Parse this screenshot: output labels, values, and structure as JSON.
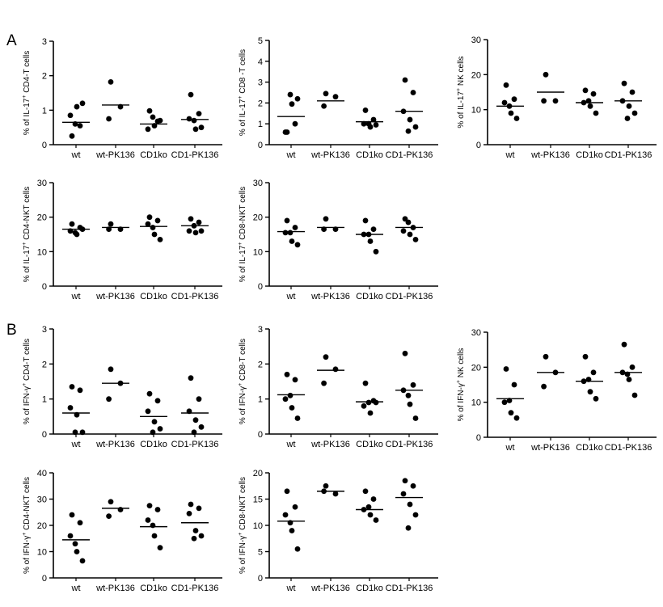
{
  "figure": {
    "panel_labels": [
      "A",
      "B"
    ],
    "background": "#ffffff",
    "ink": "#000000"
  },
  "chart_data": [
    {
      "type": "scatter",
      "ylabel_parts": [
        "% of IL-17",
        "+",
        " CD4-T cells"
      ],
      "categories": [
        "wt",
        "wt-PK136",
        "CD1ko",
        "CD1-PK136"
      ],
      "ylim": [
        0,
        3
      ],
      "yticks": [
        0,
        1,
        2,
        3
      ],
      "points": [
        [
          0.25,
          0.55,
          0.85,
          1.1,
          1.2,
          0.6
        ],
        [
          1.82,
          1.1,
          0.75
        ],
        [
          0.98,
          0.68,
          0.45,
          0.55,
          0.7,
          0.8
        ],
        [
          1.45,
          0.9,
          0.75,
          0.45,
          0.5,
          0.7
        ]
      ],
      "means": [
        0.65,
        1.15,
        0.6,
        0.73
      ]
    },
    {
      "type": "scatter",
      "ylabel_parts": [
        "% of IL-17",
        "+",
        " CD8 -T cells"
      ],
      "categories": [
        "wt",
        "wt-PK136",
        "CD1ko",
        "CD1-PK136"
      ],
      "ylim": [
        0,
        5
      ],
      "yticks": [
        0,
        1,
        2,
        3,
        4,
        5
      ],
      "points": [
        [
          0.6,
          1.0,
          0.6,
          1.95,
          2.2,
          2.4
        ],
        [
          2.45,
          2.3,
          1.85
        ],
        [
          1.65,
          1.2,
          1.0,
          0.85,
          0.95,
          1.0
        ],
        [
          3.1,
          2.5,
          1.6,
          1.2,
          0.85,
          0.65
        ]
      ],
      "means": [
        1.35,
        2.1,
        1.1,
        1.6
      ]
    },
    {
      "type": "scatter",
      "ylabel_parts": [
        "% of IL-17",
        "+",
        " NK cells"
      ],
      "categories": [
        "wt",
        "wt-PK136",
        "CD1ko",
        "CD1-PK136"
      ],
      "ylim": [
        0,
        30
      ],
      "yticks": [
        0,
        10,
        20,
        30
      ],
      "points": [
        [
          17,
          13,
          12,
          9,
          7.5,
          11
        ],
        [
          20,
          12.5,
          12.5
        ],
        [
          15.5,
          14.5,
          12,
          11,
          9,
          12.5
        ],
        [
          17.5,
          15,
          12.5,
          11,
          9,
          7.5
        ]
      ],
      "means": [
        11,
        15,
        12,
        12.5
      ]
    },
    {
      "type": "scatter",
      "ylabel_parts": [
        "% of IL-17",
        "+",
        " CD4-NKT cells"
      ],
      "categories": [
        "wt",
        "wt-PK136",
        "CD1ko",
        "CD1-PK136"
      ],
      "ylim": [
        0,
        30
      ],
      "yticks": [
        0,
        10,
        20,
        30
      ],
      "points": [
        [
          18,
          17,
          16,
          15,
          16.5,
          15.5
        ],
        [
          18,
          16.5,
          16.5
        ],
        [
          20,
          19,
          18,
          15,
          13.5,
          17
        ],
        [
          19.5,
          18.5,
          16,
          15.5,
          16,
          17.5
        ]
      ],
      "means": [
        16.5,
        17,
        17.3,
        17.5
      ]
    },
    {
      "type": "scatter",
      "ylabel_parts": [
        "% of IL-17",
        "+",
        " CD8-NKT cells"
      ],
      "categories": [
        "wt",
        "wt-PK136",
        "CD1ko",
        "CD1-PK136"
      ],
      "ylim": [
        0,
        30
      ],
      "yticks": [
        0,
        10,
        20,
        30
      ],
      "points": [
        [
          19,
          17,
          15.5,
          13,
          12,
          15.5
        ],
        [
          19.5,
          16.5,
          16.5
        ],
        [
          19,
          16.5,
          15,
          13,
          10,
          15
        ],
        [
          19.5,
          17,
          16,
          15,
          13.5,
          18.5
        ]
      ],
      "means": [
        15.8,
        17,
        15,
        17
      ]
    },
    {
      "type": "scatter",
      "ylabel_parts": [
        "% of IFN-γ",
        "+",
        " CD4-T cells"
      ],
      "categories": [
        "wt",
        "wt-PK136",
        "CD1ko",
        "CD1-PK136"
      ],
      "ylim": [
        0,
        3
      ],
      "yticks": [
        0,
        1,
        2,
        3
      ],
      "points": [
        [
          1.35,
          1.25,
          0.75,
          0.55,
          0.05,
          0.05
        ],
        [
          1.85,
          1.45,
          1.0
        ],
        [
          1.15,
          0.95,
          0.65,
          0.35,
          0.15,
          0.05
        ],
        [
          1.6,
          1.0,
          0.65,
          0.4,
          0.2,
          0.05
        ]
      ],
      "means": [
        0.6,
        1.45,
        0.5,
        0.6
      ]
    },
    {
      "type": "scatter",
      "ylabel_parts": [
        "% of IFN-γ",
        "+",
        " CD8-T cells"
      ],
      "categories": [
        "wt",
        "wt-PK136",
        "CD1ko",
        "CD1-PK136"
      ],
      "ylim": [
        0,
        3
      ],
      "yticks": [
        0,
        1,
        2,
        3
      ],
      "points": [
        [
          1.7,
          1.55,
          1.0,
          0.75,
          0.45,
          1.1
        ],
        [
          2.2,
          1.85,
          1.45
        ],
        [
          1.45,
          0.95,
          0.8,
          0.6,
          0.9,
          0.9
        ],
        [
          2.3,
          1.4,
          1.25,
          0.85,
          0.45,
          1.1
        ]
      ],
      "means": [
        1.12,
        1.82,
        0.92,
        1.25
      ]
    },
    {
      "type": "scatter",
      "ylabel_parts": [
        "% of IFN-γ",
        "+",
        " NK cells"
      ],
      "categories": [
        "wt",
        "wt-PK136",
        "CD1ko",
        "CD1-PK136"
      ],
      "ylim": [
        0,
        30
      ],
      "yticks": [
        0,
        10,
        20,
        30
      ],
      "points": [
        [
          19.5,
          15,
          10,
          7,
          5.5,
          10.5
        ],
        [
          23,
          18.5,
          14.5
        ],
        [
          23,
          18.5,
          16,
          13,
          11,
          16.5
        ],
        [
          26.5,
          20,
          18.5,
          16.5,
          12,
          18
        ]
      ],
      "means": [
        11,
        18.5,
        16,
        18.5
      ]
    },
    {
      "type": "scatter",
      "ylabel_parts": [
        "% of IFN-γ",
        "+",
        " CD4-NKT  cells"
      ],
      "categories": [
        "wt",
        "wt-PK136",
        "CD1ko",
        "CD1-PK136"
      ],
      "ylim": [
        0,
        40
      ],
      "yticks": [
        0,
        10,
        20,
        30,
        40
      ],
      "points": [
        [
          24,
          21,
          16,
          10,
          6.5,
          13
        ],
        [
          29,
          26,
          23.5
        ],
        [
          27.5,
          26,
          22,
          16,
          11.5,
          20
        ],
        [
          28,
          26.5,
          24.5,
          18,
          16,
          15
        ]
      ],
      "means": [
        14.5,
        26.5,
        19.5,
        21
      ]
    },
    {
      "type": "scatter",
      "ylabel_parts": [
        "% of IFN-γ",
        "+",
        " CD8-NKT cells"
      ],
      "categories": [
        "wt",
        "wt-PK136",
        "CD1ko",
        "CD1-PK136"
      ],
      "ylim": [
        0,
        20
      ],
      "yticks": [
        0,
        5,
        10,
        15,
        20
      ],
      "points": [
        [
          16.5,
          13.5,
          12,
          9,
          5.5,
          10.5
        ],
        [
          17.5,
          16,
          16.5
        ],
        [
          16.5,
          15,
          13,
          12,
          11,
          13.5
        ],
        [
          18.5,
          17.5,
          16,
          14,
          12,
          9.5
        ]
      ],
      "means": [
        10.8,
        16.5,
        13,
        15.3
      ]
    }
  ]
}
